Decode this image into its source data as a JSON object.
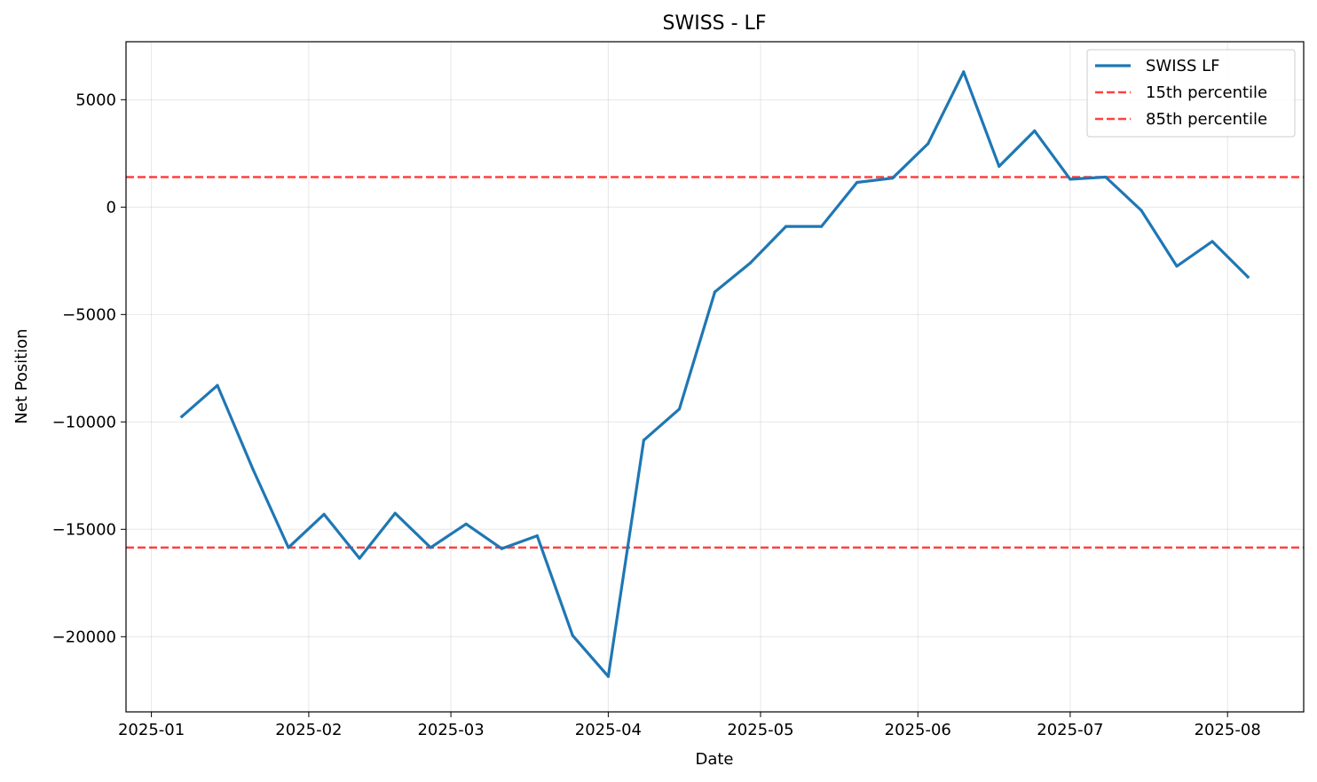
{
  "chart_data": {
    "type": "line",
    "title": "SWISS - LF",
    "xlabel": "Date",
    "ylabel": "Net Position",
    "x_ticks": [
      "2025-01-01",
      "2025-02-01",
      "2025-03-01",
      "2025-04-01",
      "2025-05-01",
      "2025-06-01",
      "2025-07-01",
      "2025-08-01"
    ],
    "x_tick_labels": [
      "2025-01",
      "2025-02",
      "2025-03",
      "2025-04",
      "2025-05",
      "2025-06",
      "2025-07",
      "2025-08"
    ],
    "y_ticks": [
      5000,
      0,
      -5000,
      -10000,
      -15000,
      -20000
    ],
    "y_tick_labels": [
      "5000",
      "0",
      "−5000",
      "−10000",
      "−15000",
      "−20000"
    ],
    "xlim": [
      "2024-12-27",
      "2025-08-16"
    ],
    "ylim": [
      -23500,
      7700
    ],
    "grid": true,
    "legend_position": "top-right",
    "series": [
      {
        "name": "SWISS LF",
        "color": "#1f77b4",
        "style": "solid",
        "x": [
          "2025-01-07",
          "2025-01-14",
          "2025-01-21",
          "2025-01-28",
          "2025-02-04",
          "2025-02-11",
          "2025-02-18",
          "2025-02-25",
          "2025-03-04",
          "2025-03-11",
          "2025-03-18",
          "2025-03-25",
          "2025-04-01",
          "2025-04-08",
          "2025-04-15",
          "2025-04-22",
          "2025-04-29",
          "2025-05-06",
          "2025-05-13",
          "2025-05-20",
          "2025-05-27",
          "2025-06-03",
          "2025-06-10",
          "2025-06-17",
          "2025-06-24",
          "2025-07-01",
          "2025-07-08",
          "2025-07-15",
          "2025-07-22",
          "2025-07-29",
          "2025-08-05"
        ],
        "values": [
          -9750,
          -8300,
          -12200,
          -15850,
          -14300,
          -16350,
          -14250,
          -15850,
          -14750,
          -15900,
          -15300,
          -19950,
          -21850,
          -10850,
          -9400,
          -3950,
          -2600,
          -900,
          -900,
          1150,
          1350,
          2950,
          6300,
          1900,
          3550,
          1300,
          1400,
          -150,
          -2750,
          -1600,
          -3250
        ]
      },
      {
        "name": "15th percentile",
        "color": "#ff0000",
        "style": "dashed",
        "value": -15850
      },
      {
        "name": "85th percentile",
        "color": "#ff0000",
        "style": "dashed",
        "value": 1400
      }
    ]
  }
}
